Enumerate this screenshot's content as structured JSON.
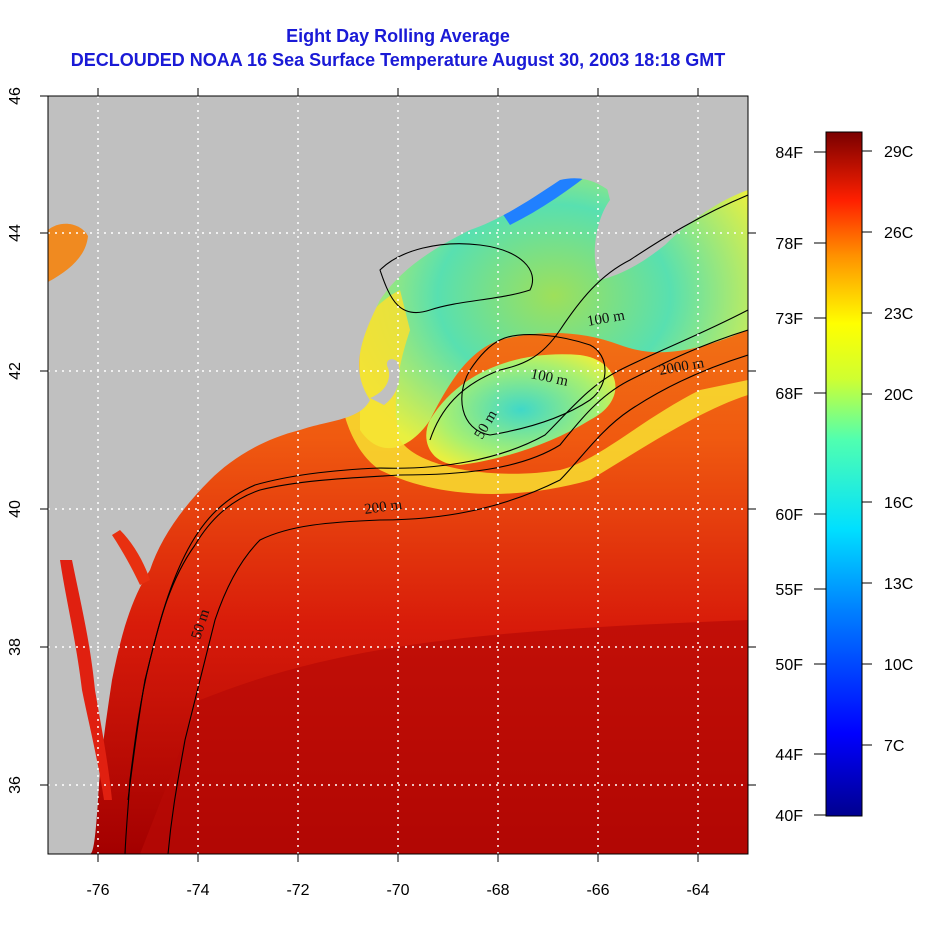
{
  "title_line_1": "Eight Day Rolling Average",
  "title_line_2": "DECLOUDED NOAA 16 Sea Surface Temperature August 30, 2003 18:18 GMT",
  "map": {
    "lon_range": [
      -77,
      -63
    ],
    "lat_range": [
      35,
      46
    ],
    "lon_ticks": [
      -76,
      -74,
      -72,
      -70,
      -68,
      -66,
      -64
    ],
    "lat_ticks": [
      36,
      38,
      40,
      42,
      44,
      46
    ],
    "grid": "dotted white",
    "land_color": "#c0c0c0",
    "contour_labels": [
      "50 m",
      "100 m",
      "200 m",
      "2000 m",
      "100 m",
      "50 m"
    ]
  },
  "colorbar": {
    "celsius_labels": [
      "29C",
      "26C",
      "23C",
      "20C",
      "16C",
      "13C",
      "10C",
      "7C"
    ],
    "fahrenheit_labels": [
      "84F",
      "78F",
      "73F",
      "68F",
      "60F",
      "55F",
      "50F",
      "44F",
      "40F"
    ],
    "range_c": [
      4,
      30
    ]
  }
}
